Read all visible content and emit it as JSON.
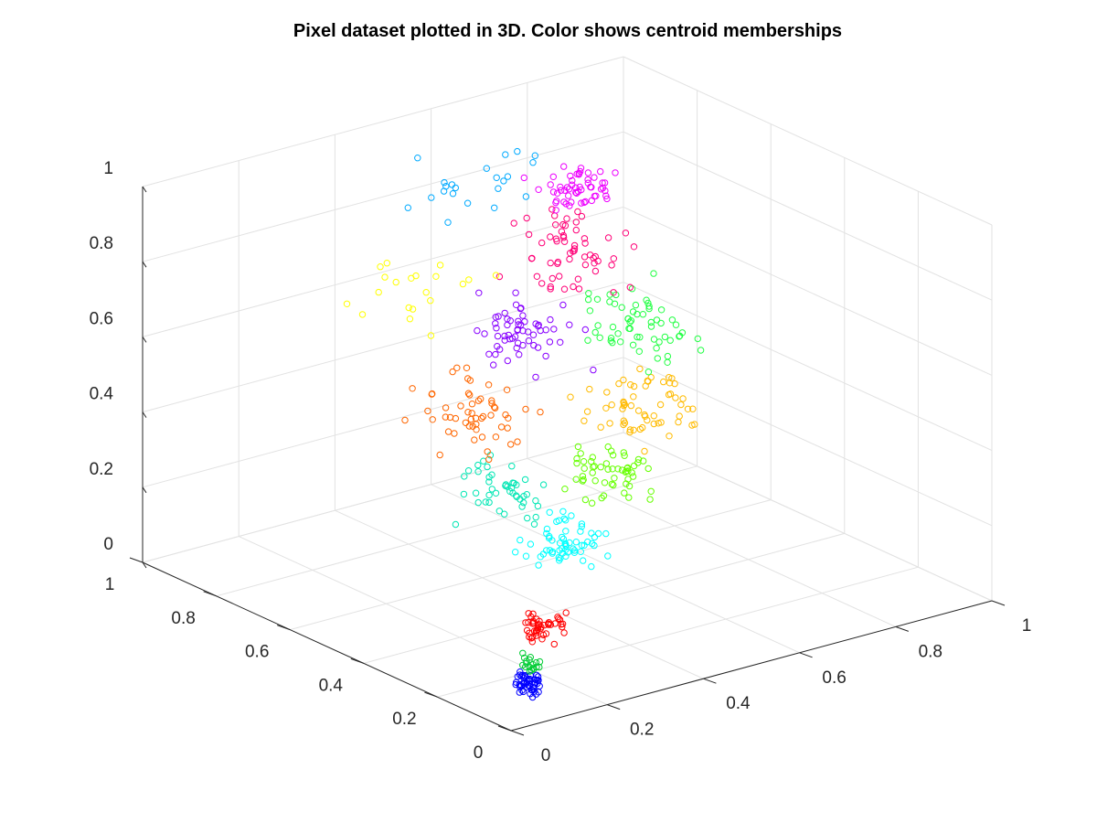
{
  "chart_data": {
    "type": "scatter",
    "title": "Pixel dataset plotted in 3D. Color shows centroid memberships",
    "axes": {
      "x": {
        "range": [
          0,
          1
        ],
        "ticks": [
          "0",
          "0.2",
          "0.4",
          "0.6",
          "0.8",
          "1"
        ]
      },
      "y": {
        "range": [
          0,
          1
        ],
        "ticks": [
          "0",
          "0.2",
          "0.4",
          "0.6",
          "0.8",
          "1"
        ]
      },
      "z": {
        "range": [
          0,
          1
        ],
        "ticks": [
          "0",
          "0.2",
          "0.4",
          "0.6",
          "0.8",
          "1"
        ]
      }
    },
    "grid": true,
    "marker": "open-circle",
    "clusters": [
      {
        "color": "#0000ff",
        "center": [
          0.08,
          0.06,
          0.07
        ],
        "spread": 0.025,
        "count": 50
      },
      {
        "color": "#00cc33",
        "center": [
          0.1,
          0.08,
          0.11
        ],
        "spread": 0.02,
        "count": 18
      },
      {
        "color": "#ff0000",
        "center": [
          0.16,
          0.12,
          0.17
        ],
        "spread": 0.035,
        "count": 45
      },
      {
        "color": "#00ffff",
        "center": [
          0.3,
          0.24,
          0.29
        ],
        "spread": 0.06,
        "count": 60
      },
      {
        "color": "#00e6b4",
        "center": [
          0.27,
          0.36,
          0.37
        ],
        "spread": 0.07,
        "count": 45
      },
      {
        "color": "#66ff00",
        "center": [
          0.48,
          0.36,
          0.36
        ],
        "spread": 0.07,
        "count": 55
      },
      {
        "color": "#ff6600",
        "center": [
          0.3,
          0.5,
          0.52
        ],
        "spread": 0.09,
        "count": 55
      },
      {
        "color": "#ffbb00",
        "center": [
          0.6,
          0.44,
          0.47
        ],
        "spread": 0.09,
        "count": 60
      },
      {
        "color": "#22ff44",
        "center": [
          0.65,
          0.48,
          0.64
        ],
        "spread": 0.09,
        "count": 60
      },
      {
        "color": "#8800ff",
        "center": [
          0.45,
          0.56,
          0.66
        ],
        "spread": 0.08,
        "count": 60
      },
      {
        "color": "#ff0077",
        "center": [
          0.6,
          0.6,
          0.81
        ],
        "spread": 0.09,
        "count": 60
      },
      {
        "color": "#ee00ff",
        "center": [
          0.62,
          0.62,
          0.95
        ],
        "spread": 0.06,
        "count": 55
      },
      {
        "color": "#00aaff",
        "center": [
          0.5,
          0.74,
          0.93
        ],
        "spread": 0.1,
        "count": 22
      },
      {
        "color": "#ffff00",
        "center": [
          0.36,
          0.72,
          0.74
        ],
        "spread": 0.1,
        "count": 20
      }
    ]
  }
}
